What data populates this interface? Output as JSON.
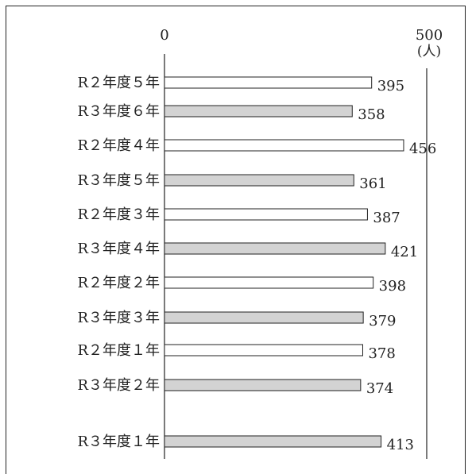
{
  "chart_data": {
    "type": "bar",
    "orientation": "horizontal",
    "categories": [
      "R２年度５年",
      "R３年度６年",
      "R２年度４年",
      "R３年度５年",
      "R２年度３年",
      "R３年度４年",
      "R２年度２年",
      "R３年度３年",
      "R２年度１年",
      "R３年度２年",
      "R３年度１年"
    ],
    "values": [
      395,
      358,
      456,
      361,
      387,
      421,
      398,
      379,
      378,
      374,
      413
    ],
    "value_labels": [
      "395",
      "358",
      "456",
      "361",
      "387",
      "421",
      "398",
      "379",
      "378",
      "374",
      "413"
    ],
    "bar_fill_by_year": {
      "R2": "#ffffff",
      "R3": "#d3d3d3"
    },
    "series_year": [
      "R2",
      "R3",
      "R2",
      "R3",
      "R2",
      "R3",
      "R2",
      "R3",
      "R2",
      "R3",
      "R3"
    ],
    "xlim": [
      0,
      500
    ],
    "ticks": {
      "min": "0",
      "max": "500"
    },
    "unit": "(人)",
    "grid": false,
    "title": ""
  }
}
